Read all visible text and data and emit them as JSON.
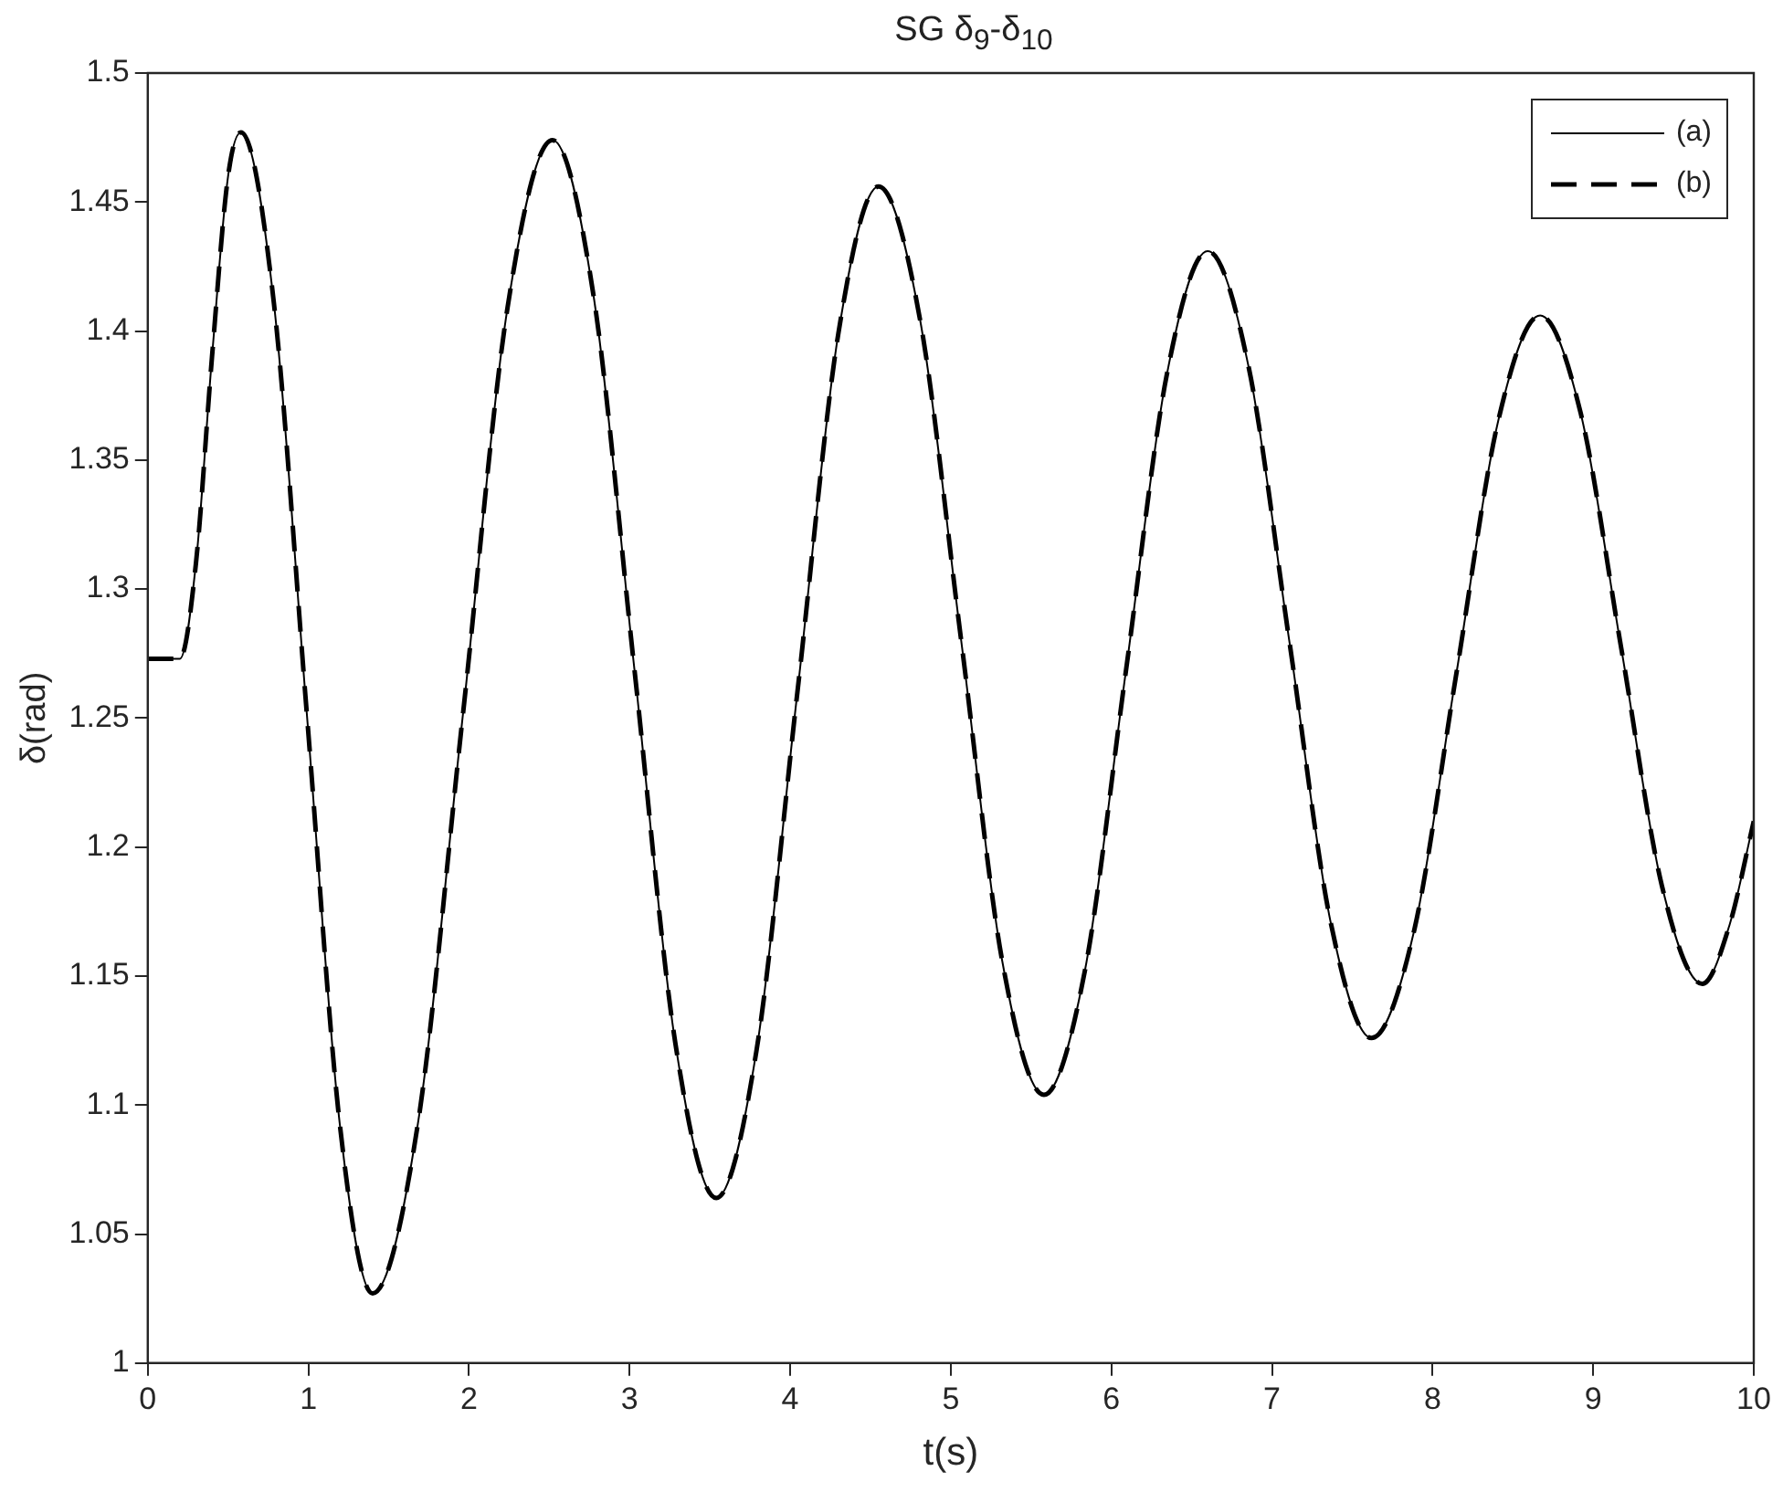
{
  "chart_data": {
    "type": "line",
    "title": "SG δ$_{9}$-δ$_{10}$",
    "xlabel": "t(s)",
    "ylabel": "δ(rad)",
    "x": [
      0,
      0.2,
      0.3,
      0.4,
      0.5,
      0.58,
      0.785,
      0.99,
      1.195,
      1.4,
      1.68,
      1.96,
      2.24,
      2.52,
      2.775,
      3.03,
      3.285,
      3.54,
      3.79,
      4.045,
      4.3,
      4.55,
      4.81,
      5.065,
      5.32,
      5.58,
      5.835,
      6.09,
      6.345,
      6.6,
      6.855,
      7.11,
      7.365,
      7.62,
      7.883,
      8.145,
      8.408,
      8.67,
      8.923,
      9.175,
      9.428,
      9.68,
      9.85,
      10
    ],
    "series": [
      {
        "name": "(a)",
        "color": "#000000",
        "line_style": "solid",
        "values": [
          1.273,
          1.273,
          1.31,
          1.39,
          1.46,
          1.477,
          1.411,
          1.252,
          1.093,
          1.027,
          1.092,
          1.25,
          1.409,
          1.474,
          1.414,
          1.269,
          1.124,
          1.064,
          1.121,
          1.26,
          1.399,
          1.456,
          1.404,
          1.28,
          1.156,
          1.104,
          1.152,
          1.268,
          1.383,
          1.431,
          1.386,
          1.279,
          1.171,
          1.126,
          1.167,
          1.266,
          1.365,
          1.406,
          1.368,
          1.277,
          1.185,
          1.147,
          1.17,
          1.21
        ]
      },
      {
        "name": "(b)",
        "color": "#000000",
        "line_style": "dashed",
        "values": [
          1.273,
          1.273,
          1.31,
          1.39,
          1.46,
          1.477,
          1.411,
          1.252,
          1.093,
          1.027,
          1.092,
          1.25,
          1.409,
          1.474,
          1.414,
          1.269,
          1.124,
          1.064,
          1.121,
          1.26,
          1.399,
          1.456,
          1.404,
          1.28,
          1.156,
          1.104,
          1.152,
          1.268,
          1.383,
          1.431,
          1.386,
          1.279,
          1.171,
          1.126,
          1.167,
          1.266,
          1.365,
          1.406,
          1.368,
          1.277,
          1.185,
          1.147,
          1.17,
          1.21
        ]
      }
    ],
    "xlim": [
      0,
      10
    ],
    "xticks": [
      0,
      1,
      2,
      3,
      4,
      5,
      6,
      7,
      8,
      9,
      10
    ],
    "ylim": [
      1,
      1.5
    ],
    "yticks": [
      1,
      1.05,
      1.1,
      1.15,
      1.2,
      1.25,
      1.3,
      1.35,
      1.4,
      1.45,
      1.5
    ],
    "grid": false,
    "legend": "top right",
    "marker": "none"
  }
}
